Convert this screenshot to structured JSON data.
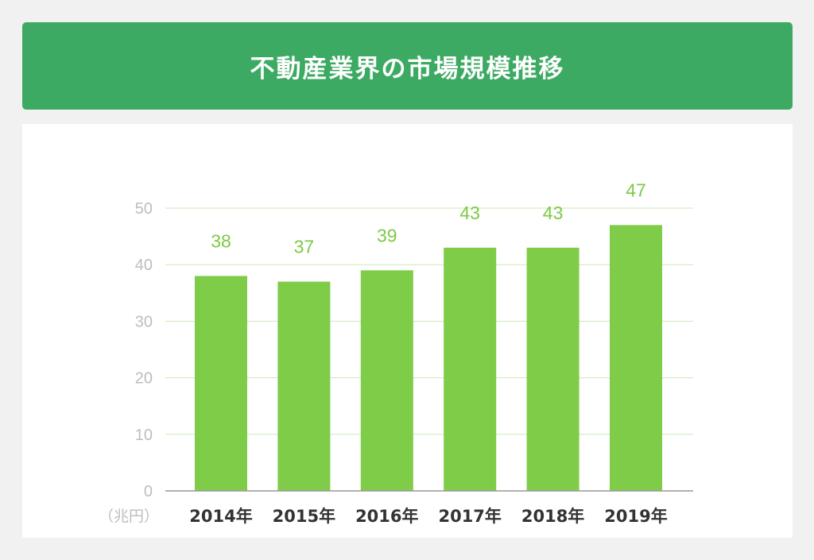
{
  "header": {
    "title": "不動産業界の市場規模推移"
  },
  "colors": {
    "header_bg": "#3daa63",
    "bar": "#7ecc47",
    "data_label": "#7cca45",
    "grid": "#cbe8b5",
    "axis": "#999999"
  },
  "chart_data": {
    "type": "bar",
    "title": "",
    "categories": [
      "2014年",
      "2015年",
      "2016年",
      "2017年",
      "2018年",
      "2019年"
    ],
    "values": [
      38,
      37,
      39,
      43,
      43,
      47
    ],
    "data_labels": [
      "38",
      "37",
      "39",
      "43",
      "43",
      "47"
    ],
    "unit_label": "（兆円）",
    "ylim": [
      0,
      50
    ],
    "yticks": [
      0,
      10,
      20,
      30,
      40,
      50
    ],
    "ytick_labels": [
      "0",
      "10",
      "20",
      "30",
      "40",
      "50"
    ],
    "grid": true,
    "legend": "none"
  }
}
